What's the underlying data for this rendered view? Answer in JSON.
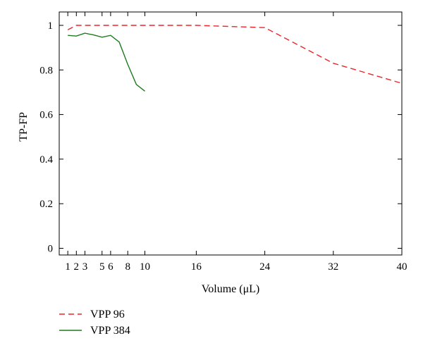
{
  "chart_data": {
    "type": "line",
    "title": "",
    "xlabel": "Volume (μL)",
    "ylabel": "TP-FP",
    "xlim": [
      0,
      40
    ],
    "ylim": [
      -0.03,
      1.06
    ],
    "x_ticks": [
      1,
      2,
      3,
      5,
      6,
      8,
      10,
      16,
      24,
      32,
      40
    ],
    "y_ticks": [
      0,
      0.2,
      0.4,
      0.6,
      0.8,
      1
    ],
    "y_tick_labels": [
      "0",
      "0.2",
      "0.4",
      "0.6",
      "0.8",
      "1"
    ],
    "grid": false,
    "legend_position": "bottom-left",
    "series": [
      {
        "name": "VPP 96",
        "color": "#e8262b",
        "style": "dashed",
        "x": [
          1,
          2,
          16,
          24,
          32,
          40
        ],
        "y": [
          0.98,
          1.0,
          1.0,
          0.99,
          0.83,
          0.74
        ]
      },
      {
        "name": "VPP 384",
        "color": "#1e7a1e",
        "style": "solid",
        "x": [
          1,
          2,
          3,
          4,
          5,
          6,
          7,
          8,
          9,
          10
        ],
        "y": [
          0.955,
          0.952,
          0.965,
          0.957,
          0.947,
          0.955,
          0.925,
          0.825,
          0.735,
          0.705
        ]
      }
    ]
  }
}
